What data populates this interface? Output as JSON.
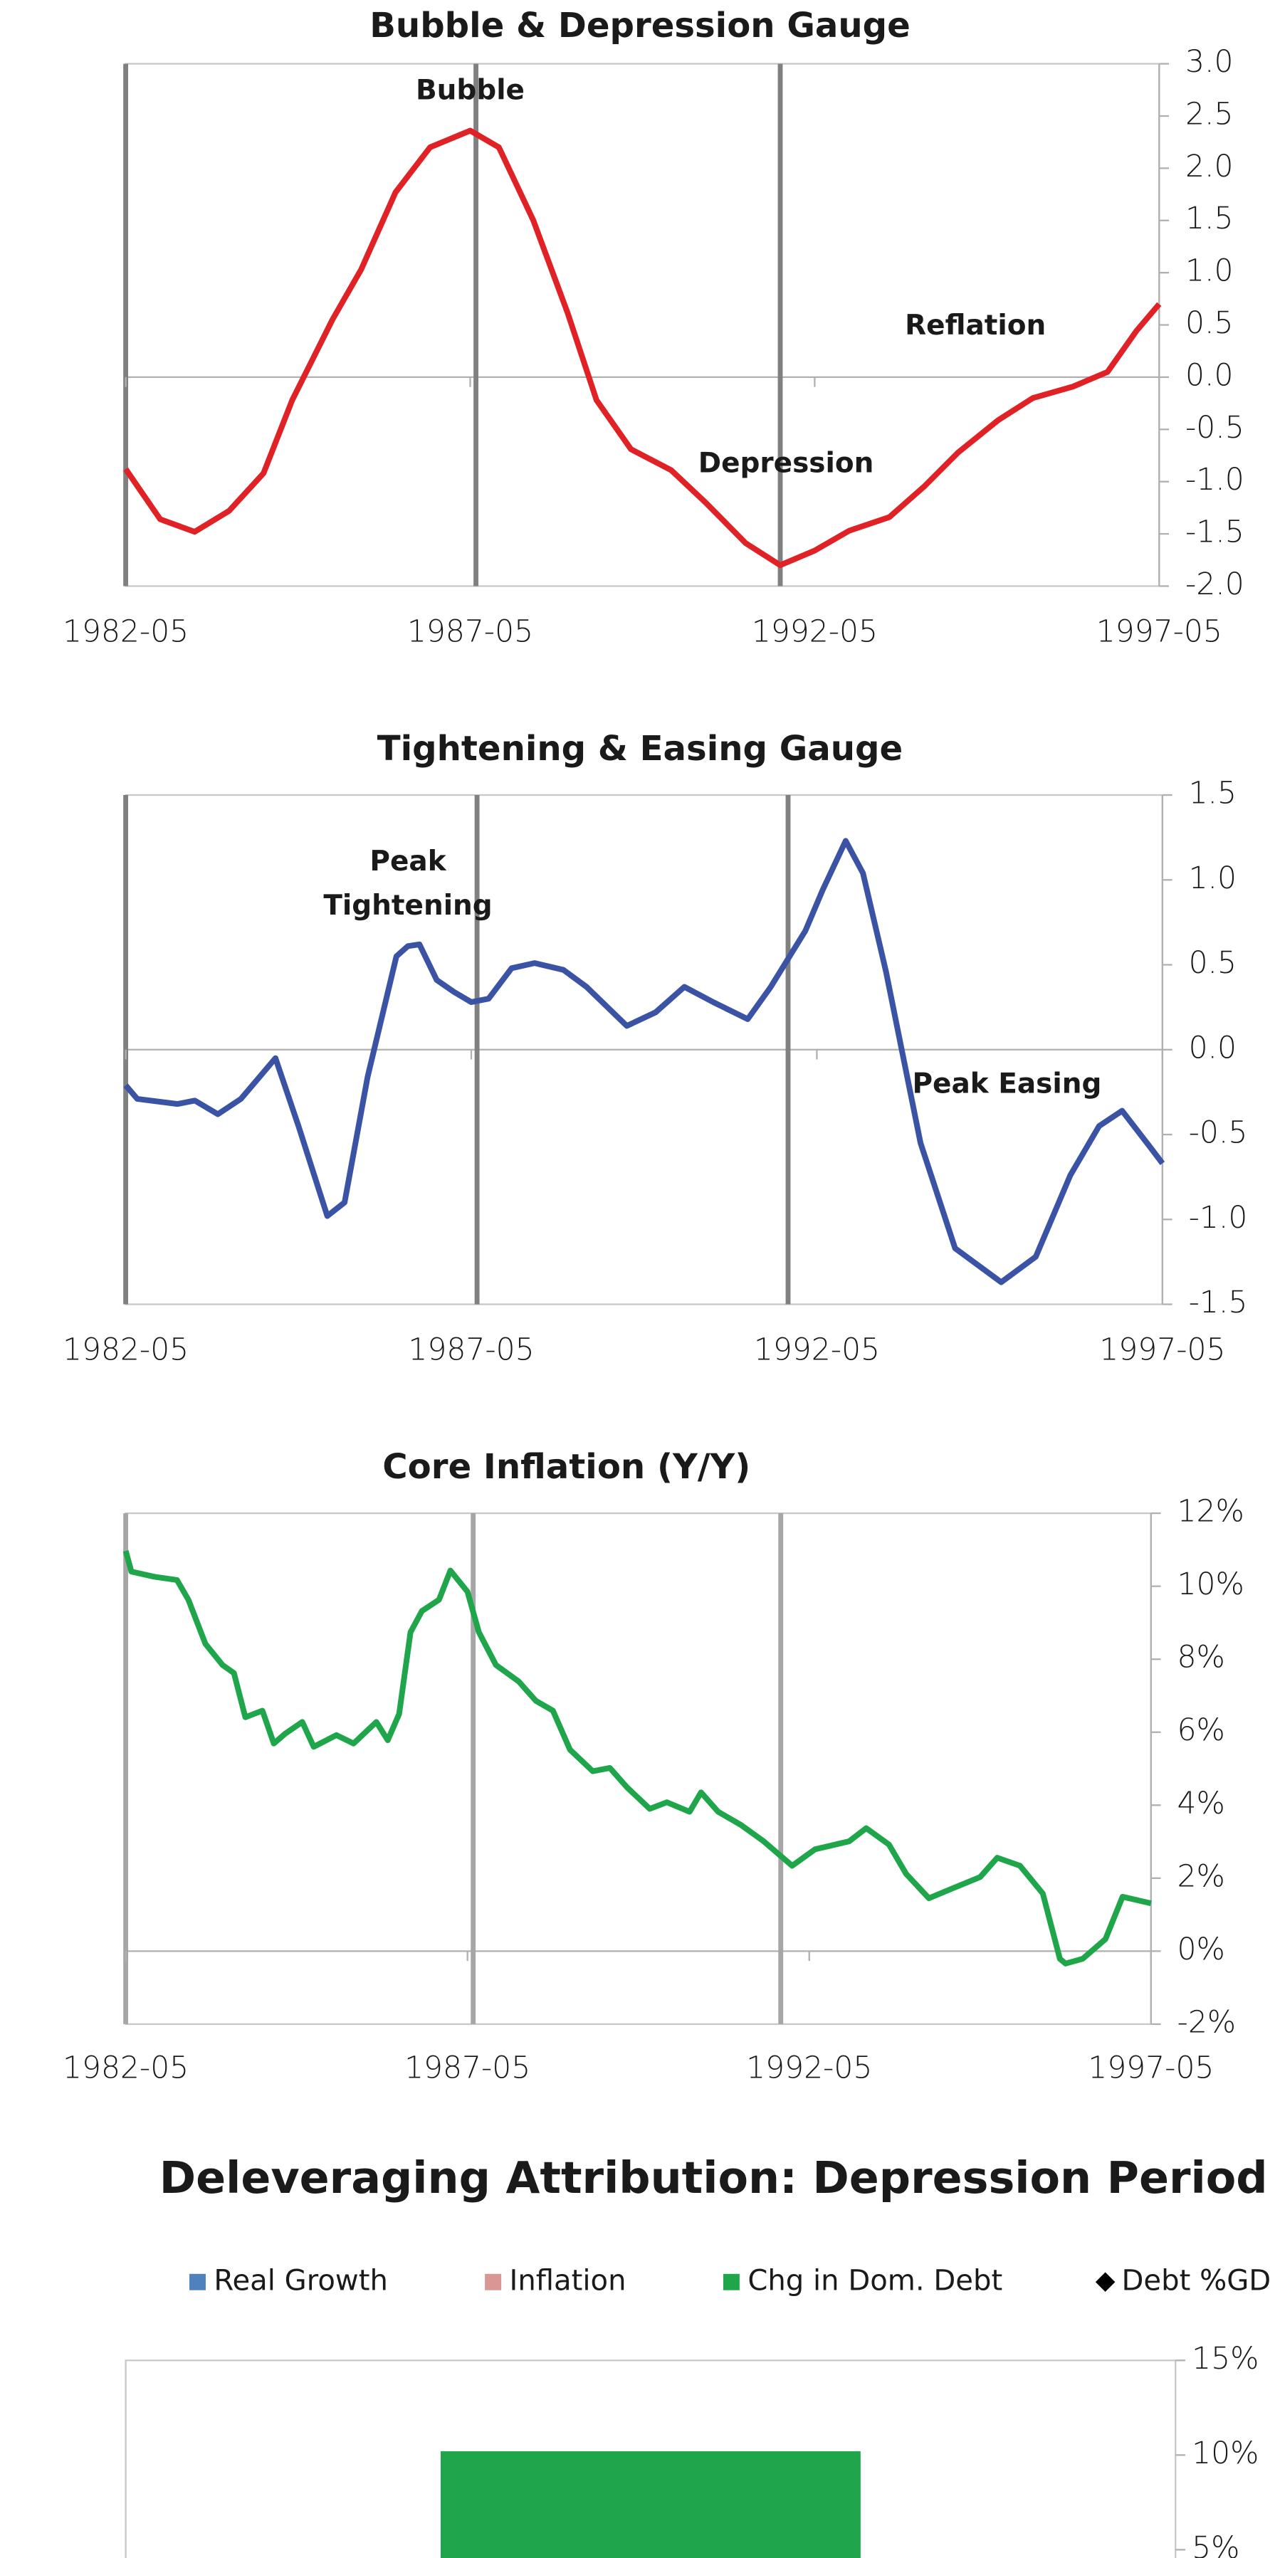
{
  "chart_data": [
    {
      "type": "line",
      "title": "Bubble & Depression Gauge",
      "x": [
        "1982-05",
        "1982-11",
        "1983-05",
        "1983-11",
        "1984-05",
        "1984-10",
        "1985-05",
        "1985-10",
        "1986-04",
        "1986-10",
        "1987-05",
        "1987-10",
        "1988-04",
        "1988-10",
        "1989-03",
        "1989-09",
        "1990-04",
        "1990-10",
        "1991-05",
        "1991-11",
        "1992-05",
        "1992-11",
        "1993-06",
        "1993-12",
        "1994-06",
        "1995-01",
        "1995-07",
        "1996-02",
        "1996-08",
        "1997-01",
        "1997-05"
      ],
      "series": [
        {
          "color": "#e02226",
          "values": [
            -0.88,
            -1.36,
            -1.48,
            -1.28,
            -0.92,
            -0.22,
            0.55,
            1.03,
            1.77,
            2.2,
            2.36,
            2.2,
            1.5,
            0.61,
            -0.22,
            -0.69,
            -0.89,
            -1.2,
            -1.59,
            -1.8,
            -1.66,
            -1.47,
            -1.34,
            -1.05,
            -0.72,
            -0.41,
            -0.2,
            -0.09,
            0.05,
            0.44,
            0.7
          ]
        }
      ],
      "xlim": [
        "1982-05",
        "1997-05"
      ],
      "xticks": [
        "1982-05",
        "1987-05",
        "1992-05",
        "1997-05"
      ],
      "ylim": [
        -2,
        3
      ],
      "yticks": [
        {
          "value": 3,
          "label": "3.0"
        },
        {
          "value": 2.5,
          "label": "2.5"
        },
        {
          "value": 2,
          "label": "2.0"
        },
        {
          "value": 1.5,
          "label": "1.5"
        },
        {
          "value": 1,
          "label": "1.0"
        },
        {
          "value": 0.5,
          "label": "0.5"
        },
        {
          "value": 0,
          "label": "0.0"
        },
        {
          "value": -0.5,
          "label": "-0.5"
        },
        {
          "value": -1,
          "label": "-1.0"
        },
        {
          "value": -1.5,
          "label": "-1.5"
        },
        {
          "value": -2,
          "label": "-2.0"
        }
      ],
      "vlines": [
        "1982-05",
        "1987-06",
        "1991-11"
      ],
      "annotations": [
        {
          "text": [
            "Bubble"
          ],
          "x": "1987-05",
          "y": 2.73
        },
        {
          "text": [
            "Depression"
          ],
          "x": "1991-12",
          "y": -0.84
        },
        {
          "text": [
            "Reflation"
          ],
          "x": "1994-09",
          "y": 0.48
        }
      ]
    },
    {
      "type": "line",
      "title": "Tightening & Easing Gauge",
      "x": [
        "1982-05",
        "1982-07",
        "1983-02",
        "1983-05",
        "1983-09",
        "1984-01",
        "1984-07",
        "1984-11",
        "1985-04",
        "1985-07",
        "1985-11",
        "1986-04",
        "1986-06",
        "1986-08",
        "1986-11",
        "1987-02",
        "1987-05",
        "1987-08",
        "1987-12",
        "1988-04",
        "1988-09",
        "1989-01",
        "1989-08",
        "1990-01",
        "1990-06",
        "1990-11",
        "1991-05",
        "1991-09",
        "1992-03",
        "1992-06",
        "1992-10",
        "1993-01",
        "1993-05",
        "1993-11",
        "1994-05",
        "1995-01",
        "1995-07",
        "1996-01",
        "1996-06",
        "1996-10",
        "1997-03",
        "1997-05"
      ],
      "series": [
        {
          "color": "#3a53a4",
          "values": [
            -0.21,
            -0.29,
            -0.32,
            -0.3,
            -0.38,
            -0.29,
            -0.05,
            -0.45,
            -0.98,
            -0.9,
            -0.16,
            0.55,
            0.61,
            0.62,
            0.41,
            0.34,
            0.28,
            0.3,
            0.48,
            0.51,
            0.47,
            0.37,
            0.14,
            0.22,
            0.37,
            0.28,
            0.18,
            0.37,
            0.7,
            0.94,
            1.23,
            1.04,
            0.46,
            -0.55,
            -1.17,
            -1.37,
            -1.22,
            -0.74,
            -0.45,
            -0.36,
            -0.58,
            -0.67
          ]
        }
      ],
      "xlim": [
        "1982-05",
        "1997-05"
      ],
      "xticks": [
        "1982-05",
        "1987-05",
        "1992-05",
        "1997-05"
      ],
      "ylim": [
        -1.5,
        1.5
      ],
      "yticks": [
        {
          "value": 1.5,
          "label": "1.5"
        },
        {
          "value": 1,
          "label": "1.0"
        },
        {
          "value": 0.5,
          "label": "0.5"
        },
        {
          "value": 0,
          "label": "0.0"
        },
        {
          "value": -0.5,
          "label": "-0.5"
        },
        {
          "value": -1,
          "label": "-1.0"
        },
        {
          "value": -1.5,
          "label": "-1.5"
        }
      ],
      "vlines": [
        "1982-05",
        "1987-06",
        "1991-12"
      ],
      "annotations": [
        {
          "text": [
            "Peak",
            "Tightening"
          ],
          "x": "1986-06",
          "y": 1.1
        },
        {
          "text": [
            "Peak Easing"
          ],
          "x": "1995-02",
          "y": -0.21
        }
      ]
    },
    {
      "type": "line",
      "title": "Core Inflation (Y/Y)",
      "x": [
        "1982-05",
        "1982-06",
        "1982-10",
        "1983-02",
        "1983-04",
        "1983-07",
        "1983-10",
        "1983-12",
        "1984-02",
        "1984-05",
        "1984-07",
        "1984-09",
        "1984-12",
        "1985-02",
        "1985-06",
        "1985-09",
        "1986-01",
        "1986-03",
        "1986-05",
        "1986-07",
        "1986-09",
        "1986-12",
        "1987-02",
        "1987-05",
        "1987-07",
        "1987-10",
        "1988-02",
        "1988-05",
        "1988-08",
        "1988-11",
        "1989-03",
        "1989-06",
        "1989-09",
        "1990-01",
        "1990-04",
        "1990-08",
        "1990-10",
        "1991-01",
        "1991-05",
        "1991-09",
        "1992-02",
        "1992-06",
        "1992-12",
        "1993-03",
        "1993-07",
        "1993-10",
        "1994-02",
        "1994-06",
        "1994-11",
        "1995-02",
        "1995-06",
        "1995-10",
        "1996-01",
        "1996-02",
        "1996-05",
        "1996-09",
        "1996-12",
        "1997-05"
      ],
      "series": [
        {
          "color": "#1fa64a",
          "values": [
            10.97,
            10.4,
            10.26,
            10.17,
            9.63,
            8.42,
            7.84,
            7.62,
            6.41,
            6.59,
            5.69,
            5.96,
            6.28,
            5.6,
            5.92,
            5.69,
            6.28,
            5.78,
            6.5,
            8.74,
            9.32,
            9.63,
            10.43,
            9.85,
            8.74,
            7.84,
            7.39,
            6.86,
            6.59,
            5.52,
            4.93,
            5.02,
            4.49,
            3.9,
            4.08,
            3.82,
            4.35,
            3.82,
            3.46,
            3.01,
            2.34,
            2.79,
            3.01,
            3.37,
            2.92,
            2.12,
            1.45,
            1.71,
            2.03,
            2.56,
            2.34,
            1.58,
            -0.21,
            -0.34,
            -0.21,
            0.33,
            1.49,
            1.31
          ]
        }
      ],
      "xlim": [
        "1982-05",
        "1997-05"
      ],
      "xticks": [
        "1982-05",
        "1987-05",
        "1992-05",
        "1997-05"
      ],
      "ylim": [
        -2,
        12
      ],
      "yticks": [
        {
          "value": 12,
          "label": "12%"
        },
        {
          "value": 10,
          "label": "10%"
        },
        {
          "value": 8,
          "label": "8%"
        },
        {
          "value": 6,
          "label": "6%"
        },
        {
          "value": 4,
          "label": "4%"
        },
        {
          "value": 2,
          "label": "2%"
        },
        {
          "value": 0,
          "label": "0%"
        },
        {
          "value": -2,
          "label": "-2%"
        }
      ],
      "vlines": [
        "1982-05",
        "1987-06",
        "1991-12"
      ]
    },
    {
      "type": "bar",
      "title": "Deleveraging Attribution: Depression Period",
      "categories": [
        null
      ],
      "series": [
        {
          "name": "Real Growth",
          "color": "#4f81bd",
          "values": [
            null
          ]
        },
        {
          "name": "Inflation",
          "color": "#d99694",
          "values": [
            null
          ]
        },
        {
          "name": "Chg in Dom. Debt",
          "color": "#1fa64a",
          "values": [
            10.2
          ]
        },
        {
          "name": "Debt %GD",
          "color": "#000000",
          "marker": "diamond",
          "values": [
            null
          ]
        }
      ],
      "ylim": [
        0,
        15
      ],
      "yticks": [
        {
          "value": 15,
          "label": "15%"
        },
        {
          "value": 10,
          "label": "10%"
        },
        {
          "value": 5,
          "label": "5%"
        }
      ],
      "legend": "top"
    }
  ]
}
